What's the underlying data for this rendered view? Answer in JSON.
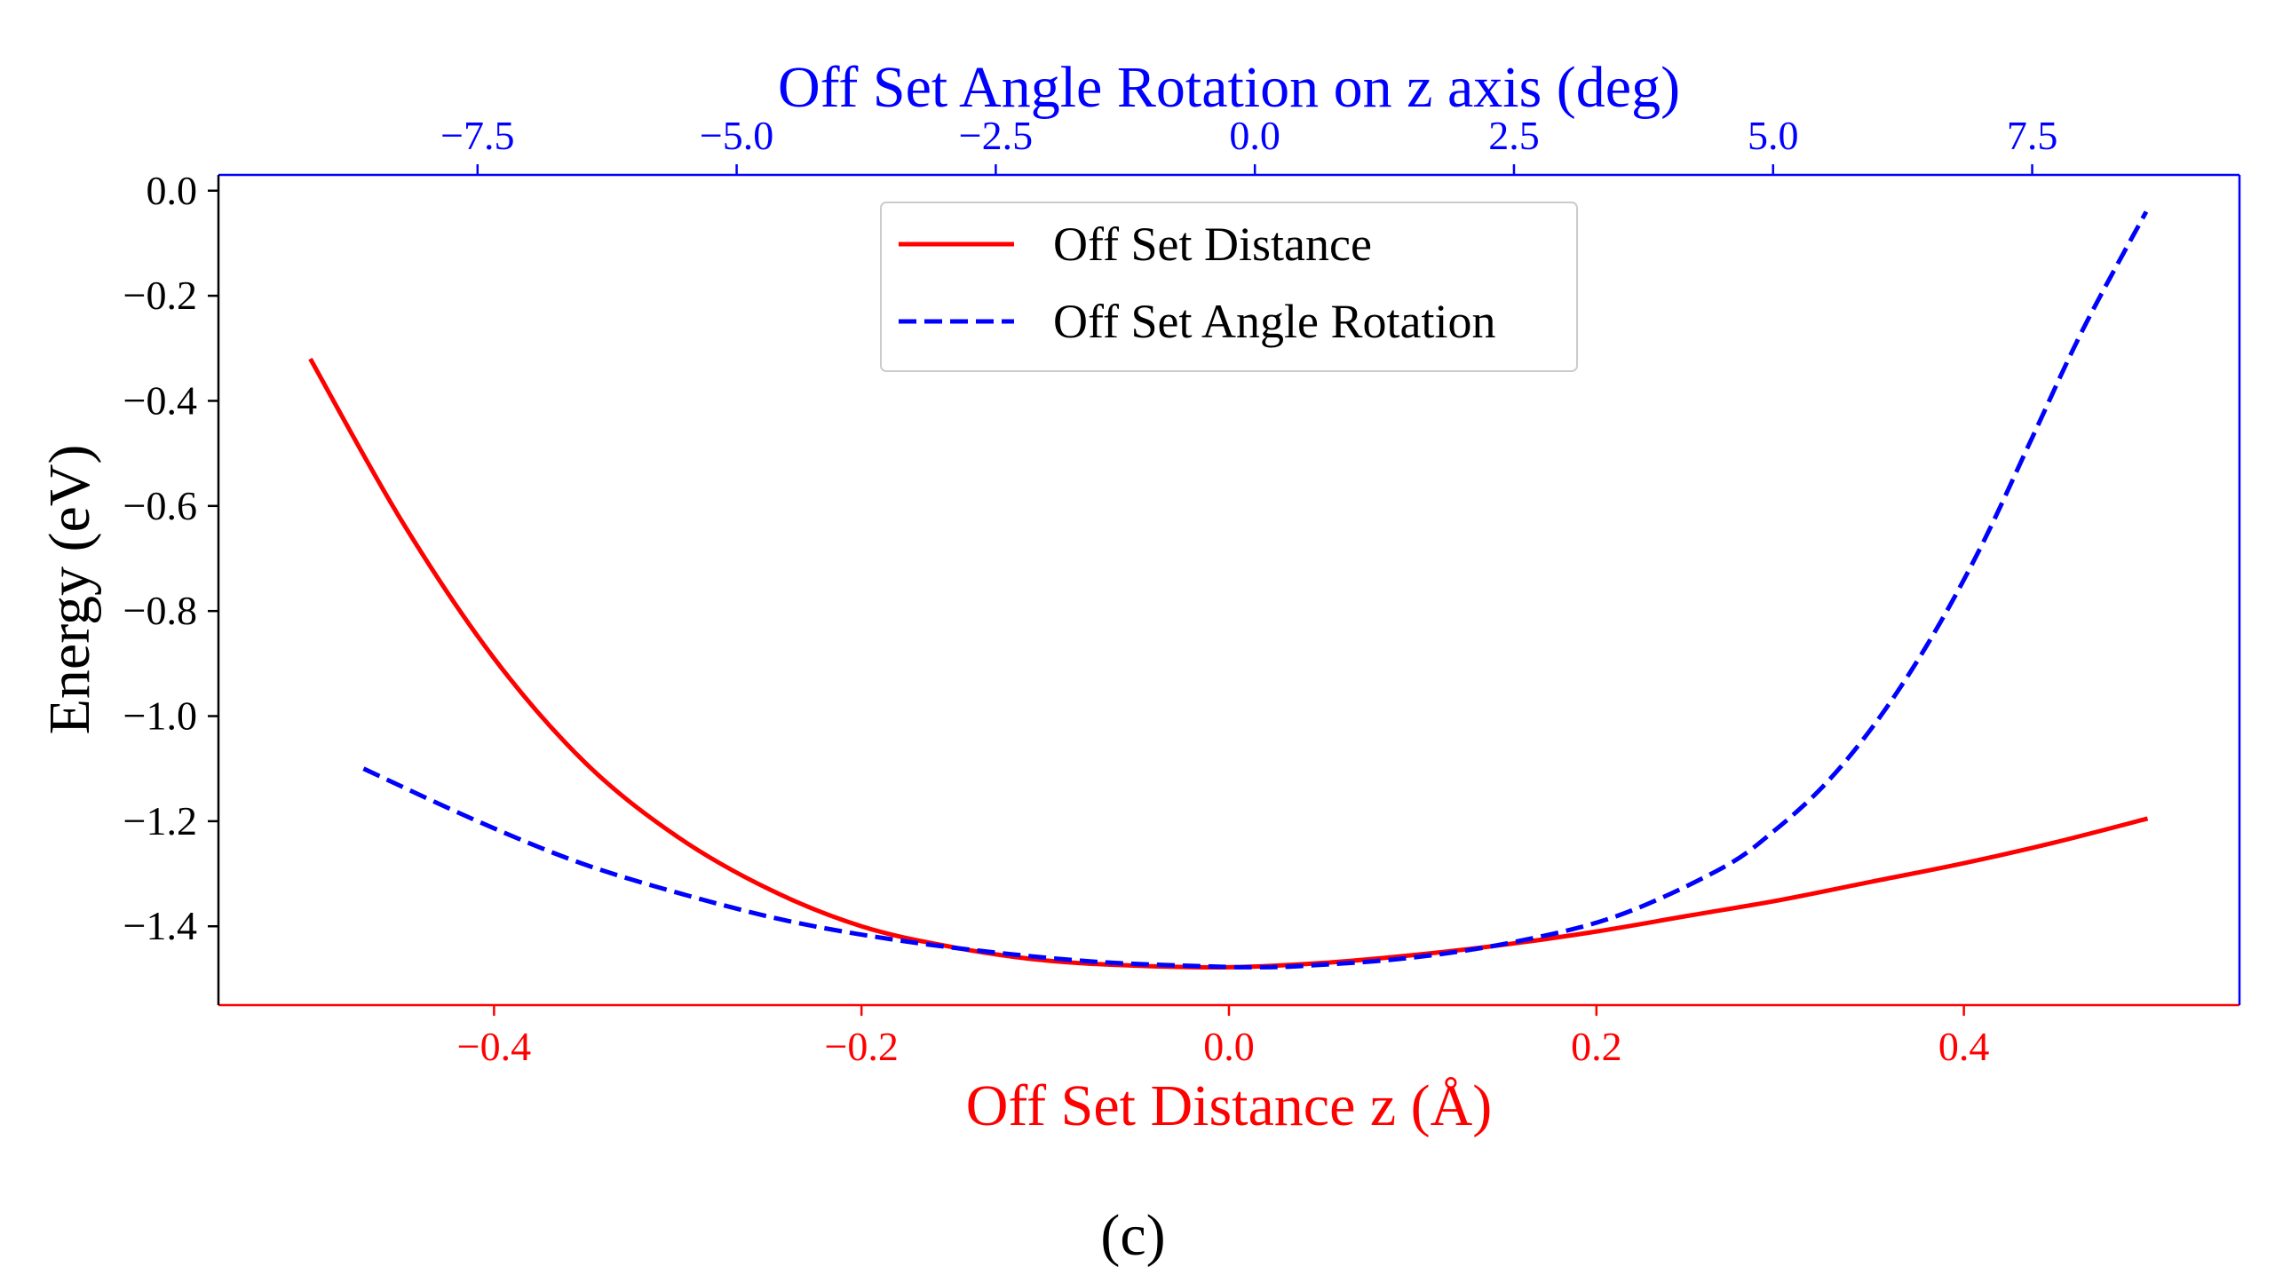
{
  "chart_data": {
    "type": "line",
    "caption": "(c)",
    "x_bottom": {
      "label": "Off Set Distance z (Å)",
      "range": [
        -0.55,
        0.55
      ],
      "ticks": [
        -0.4,
        -0.2,
        0.0,
        0.2,
        0.4
      ],
      "tick_labels": [
        "−0.4",
        "−0.2",
        "0.0",
        "0.2",
        "0.4"
      ],
      "color": "#ff0000"
    },
    "x_top": {
      "label": "Off Set Angle Rotation on z axis (deg)",
      "range": [
        -10.0,
        9.5
      ],
      "ticks": [
        -7.5,
        -5.0,
        -2.5,
        0.0,
        2.5,
        5.0,
        7.5
      ],
      "tick_labels": [
        "−7.5",
        "−5.0",
        "−2.5",
        "0.0",
        "2.5",
        "5.0",
        "7.5"
      ],
      "color": "#0000ff"
    },
    "y": {
      "label": "Energy (eV)",
      "range": [
        -1.55,
        0.03
      ],
      "ticks": [
        0.0,
        -0.2,
        -0.4,
        -0.6,
        -0.8,
        -1.0,
        -1.2,
        -1.4
      ],
      "tick_labels": [
        "0.0",
        "−0.2",
        "−0.4",
        "−0.6",
        "−0.8",
        "−1.0",
        "−1.2",
        "−1.4"
      ]
    },
    "legend": {
      "position": "upper-center"
    },
    "series": [
      {
        "name": "Off Set Distance",
        "axis": "bottom",
        "color": "#ff0000",
        "style": "solid",
        "x": [
          -0.5,
          -0.45,
          -0.4,
          -0.35,
          -0.3,
          -0.25,
          -0.2,
          -0.15,
          -0.1,
          -0.05,
          0.0,
          0.05,
          0.1,
          0.15,
          0.2,
          0.25,
          0.3,
          0.35,
          0.4,
          0.45,
          0.5
        ],
        "y": [
          -0.32,
          -0.63,
          -0.89,
          -1.09,
          -1.23,
          -1.33,
          -1.4,
          -1.44,
          -1.465,
          -1.475,
          -1.478,
          -1.47,
          -1.455,
          -1.435,
          -1.41,
          -1.38,
          -1.35,
          -1.315,
          -1.28,
          -1.24,
          -1.195
        ]
      },
      {
        "name": "Off Set Angle Rotation",
        "axis": "top",
        "color": "#0000ff",
        "style": "dashed",
        "x": [
          -8.6,
          -7.5,
          -6.5,
          -5.5,
          -4.5,
          -3.5,
          -2.5,
          -1.5,
          -0.5,
          0.0,
          0.5,
          1.5,
          2.5,
          3.5,
          4.5,
          5.0,
          5.5,
          6.0,
          6.5,
          7.0,
          7.5,
          8.0,
          8.6
        ],
        "y": [
          -1.1,
          -1.2,
          -1.28,
          -1.34,
          -1.39,
          -1.425,
          -1.45,
          -1.468,
          -1.476,
          -1.478,
          -1.475,
          -1.46,
          -1.43,
          -1.38,
          -1.29,
          -1.22,
          -1.13,
          -1.01,
          -0.86,
          -0.68,
          -0.47,
          -0.26,
          -0.04
        ]
      }
    ]
  }
}
